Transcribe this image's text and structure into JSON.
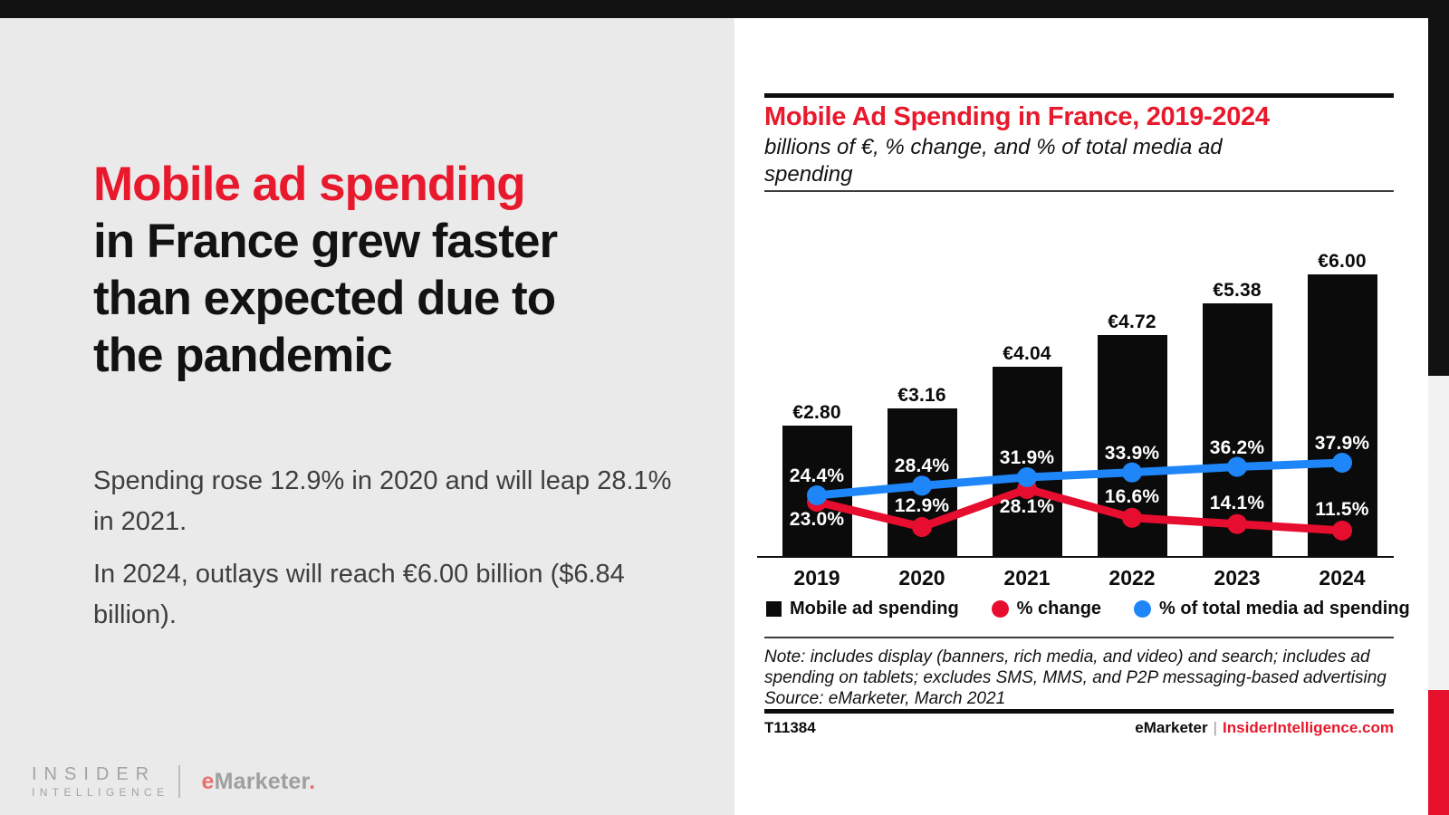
{
  "left": {
    "headline_lines": [
      "Mobile ad spending",
      "in France grew faster",
      "than expected due to",
      "the pandemic"
    ],
    "headline_accent_line_count": 1,
    "para1": "Spending rose 12.9% in 2020 and will leap 28.1% in 2021.",
    "para2": "In 2024, outlays will reach €6.00 billion ($6.84 billion).",
    "brand": {
      "insider_top": "INSIDER",
      "insider_bottom": "INTELLIGENCE",
      "emarketer_e": "e",
      "emarketer_rest": "Marketer",
      "emarketer_dot": "."
    }
  },
  "chart": {
    "title": "Mobile Ad Spending in France, 2019-2024",
    "subtitle": "billions of €, % change, and % of total media ad spending",
    "note": "Note: includes display (banners, rich media, and video) and search; includes ad spending on tablets; excludes SMS, MMS, and P2P messaging-based advertising",
    "source": "Source: eMarketer, March 2021",
    "footer_id": "T11384",
    "footer_brand_black": "eMarketer",
    "footer_brand_sep": "|",
    "footer_brand_red": "InsiderIntelligence.com",
    "colors": {
      "bar": "#0b0b0b",
      "red_line": "#e60d2e",
      "blue_line": "#1e86f8",
      "accent_red": "#e8192c"
    }
  },
  "chart_data": {
    "type": "bar",
    "categories": [
      "2019",
      "2020",
      "2021",
      "2022",
      "2023",
      "2024"
    ],
    "series": [
      {
        "name": "Mobile ad spending",
        "type": "bar",
        "unit": "billions of €",
        "color": "#0b0b0b",
        "values": [
          2.8,
          3.16,
          4.04,
          4.72,
          5.38,
          6.0
        ],
        "labels": [
          "€2.80",
          "€3.16",
          "€4.04",
          "€4.72",
          "€5.38",
          "€6.00"
        ]
      },
      {
        "name": "% change",
        "type": "line",
        "color": "#e60d2e",
        "values": [
          23.0,
          12.9,
          28.1,
          16.6,
          14.1,
          11.5
        ],
        "labels": [
          "23.0%",
          "12.9%",
          "28.1%",
          "16.6%",
          "14.1%",
          "11.5%"
        ],
        "label_placement": [
          "below",
          "above",
          "below",
          "above",
          "above",
          "above"
        ]
      },
      {
        "name": "% of total media ad spending",
        "type": "line",
        "color": "#1e86f8",
        "values": [
          24.4,
          28.4,
          31.9,
          33.9,
          36.2,
          37.9
        ],
        "labels": [
          "24.4%",
          "28.4%",
          "31.9%",
          "33.9%",
          "36.2%",
          "37.9%"
        ],
        "label_placement": [
          "above",
          "above",
          "above",
          "above",
          "above",
          "above"
        ]
      }
    ],
    "legend": [
      {
        "label": "Mobile ad spending",
        "marker": "square",
        "color": "#0b0b0b"
      },
      {
        "label": "% change",
        "marker": "circle",
        "color": "#e60d2e"
      },
      {
        "label": "% of total media ad spending",
        "marker": "circle",
        "color": "#1e86f8"
      }
    ],
    "legend_position": "bottom",
    "grid": false
  }
}
